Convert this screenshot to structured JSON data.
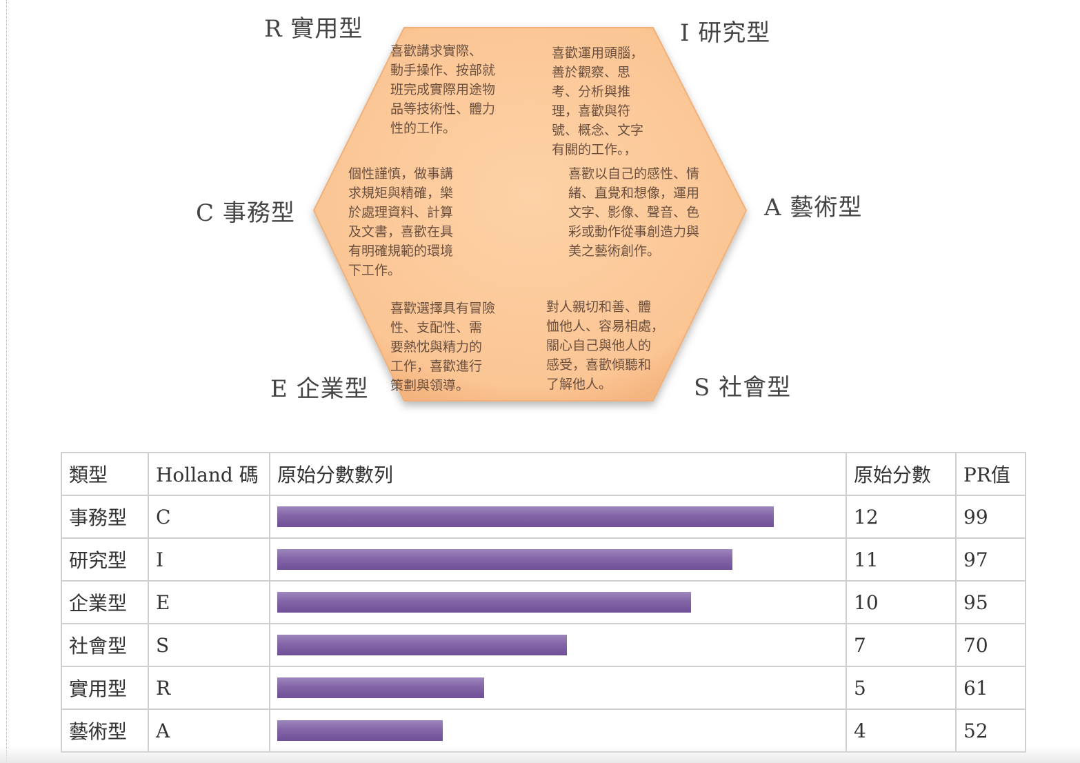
{
  "diagram": {
    "fill_color": "#fbc99a",
    "types": [
      {
        "code": "R",
        "label": "R 實用型",
        "description": "喜歡講求實際、\n動手操作、按部就\n班完成實際用途物\n品等技術性、體力\n性的工作。"
      },
      {
        "code": "I",
        "label": "I 研究型",
        "description": "喜歡運用頭腦，\n善於觀察、思\n考、分析與推\n理，喜歡與符\n號、概念、文字\n有關的工作。，"
      },
      {
        "code": "A",
        "label": "A 藝術型",
        "description": "喜歡以自己的感性、情\n緒、直覺和想像，運用\n文字、影像、聲音、色\n彩或動作從事創造力與\n美之藝術創作。"
      },
      {
        "code": "S",
        "label": "S 社會型",
        "description": "對人親切和善、體\n恤他人、容易相處，\n關心自己與他人的\n感受，喜歡傾聽和\n了解他人。"
      },
      {
        "code": "E",
        "label": "E 企業型",
        "description": "喜歡選擇具有冒險\n性、支配性、需\n要熱忱與精力的\n工作，喜歡進行\n策劃與領導。"
      },
      {
        "code": "C",
        "label": "C 事務型",
        "description": "個性謹慎，做事講\n求規矩與精確，樂\n於處理資料、計算\n及文書，喜歡在具\n有明確規範的環境\n下工作。"
      }
    ]
  },
  "table": {
    "headers": [
      "類型",
      "Holland 碼",
      "原始分數數列",
      "原始分數",
      "PR值"
    ],
    "bar_color": "#8466a8",
    "score_max": 15,
    "rows": [
      {
        "type": "事務型",
        "code": "C",
        "score": "12",
        "pr": "99"
      },
      {
        "type": "研究型",
        "code": "I",
        "score": "11",
        "pr": "97"
      },
      {
        "type": "企業型",
        "code": "E",
        "score": "10",
        "pr": "95"
      },
      {
        "type": "社會型",
        "code": "S",
        "score": "7",
        "pr": "70"
      },
      {
        "type": "實用型",
        "code": "R",
        "score": "5",
        "pr": "61"
      },
      {
        "type": "藝術型",
        "code": "A",
        "score": "4",
        "pr": "52"
      }
    ]
  }
}
